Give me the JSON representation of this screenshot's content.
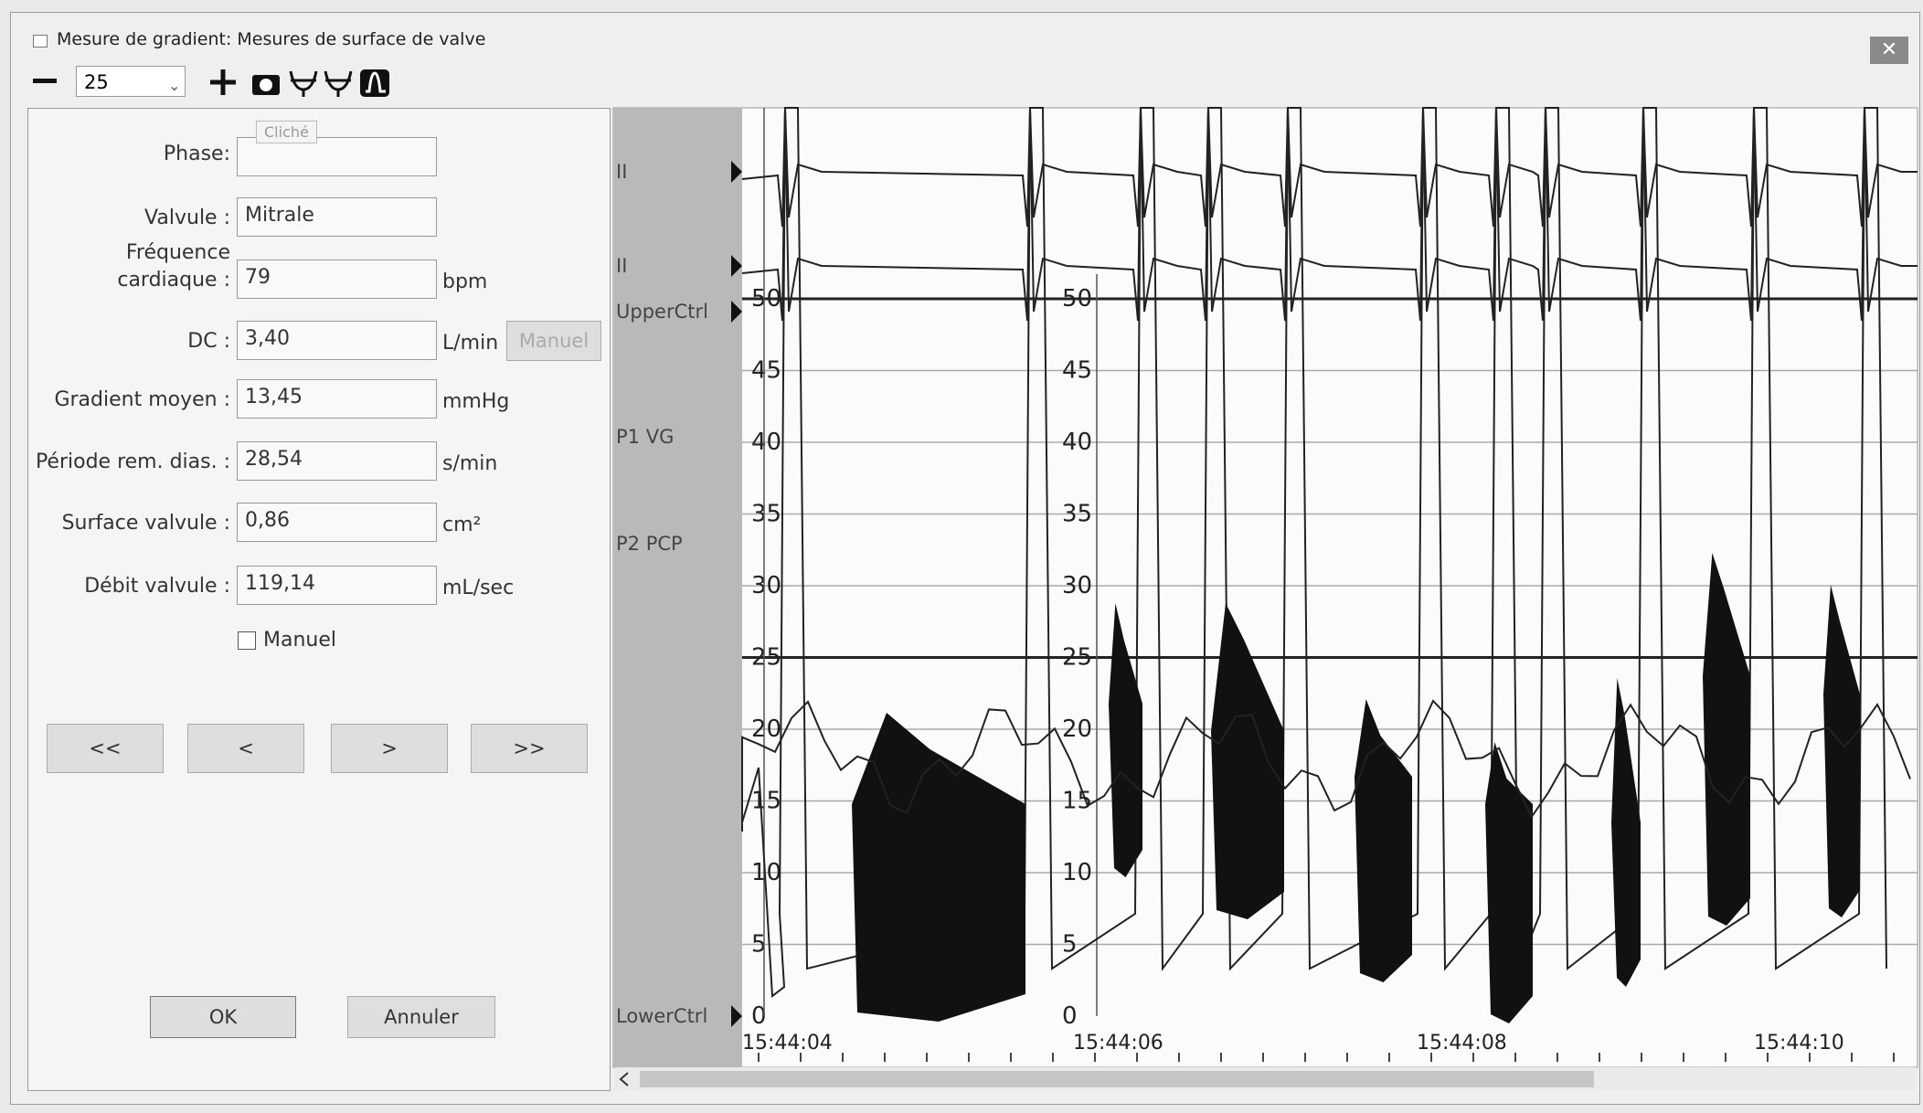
{
  "window": {
    "title": "Mesure de gradient: Mesures de surface de valve"
  },
  "toolbar": {
    "zoom": "25"
  },
  "form": {
    "phase": {
      "label": "Phase:",
      "tooltip": "Cliché"
    },
    "fields": [
      {
        "label": [
          "Valvule :"
        ],
        "value": "Mitrale"
      },
      {
        "label": [
          "Fréquence",
          "cardiaque :"
        ],
        "value": "79",
        "unit": "bpm"
      },
      {
        "label": [
          "DC :"
        ],
        "value": "3,40",
        "unit": "L/min",
        "button": "Manuel"
      },
      {
        "label": [
          "Gradient moyen :"
        ],
        "value": "13,45",
        "unit": "mmHg"
      },
      {
        "label": [
          "Période rem. dias. :"
        ],
        "value": "28,54",
        "unit": "s/min"
      },
      {
        "label": [
          "Surface valvule :"
        ],
        "value": "0,86",
        "unit": "cm²"
      },
      {
        "label": [
          "Débit valvule :"
        ],
        "value": "119,14",
        "unit": "mL/sec"
      }
    ],
    "checkbox": "Manuel",
    "nav": [
      "<<",
      "<",
      ">",
      ">>"
    ],
    "ok": "OK",
    "cancel": "Annuler"
  },
  "waveform": {
    "channels": [
      "II",
      "II",
      "UpperCtrl",
      "P1 VG",
      "P2 PCP",
      "LowerCtrl"
    ],
    "scale": [
      "50",
      "45",
      "40",
      "35",
      "30",
      "25",
      "20",
      "15",
      "10",
      "5",
      "0"
    ],
    "times": [
      "15:44:04",
      "15:44:06",
      "15:44:08",
      "15:44:10"
    ]
  }
}
